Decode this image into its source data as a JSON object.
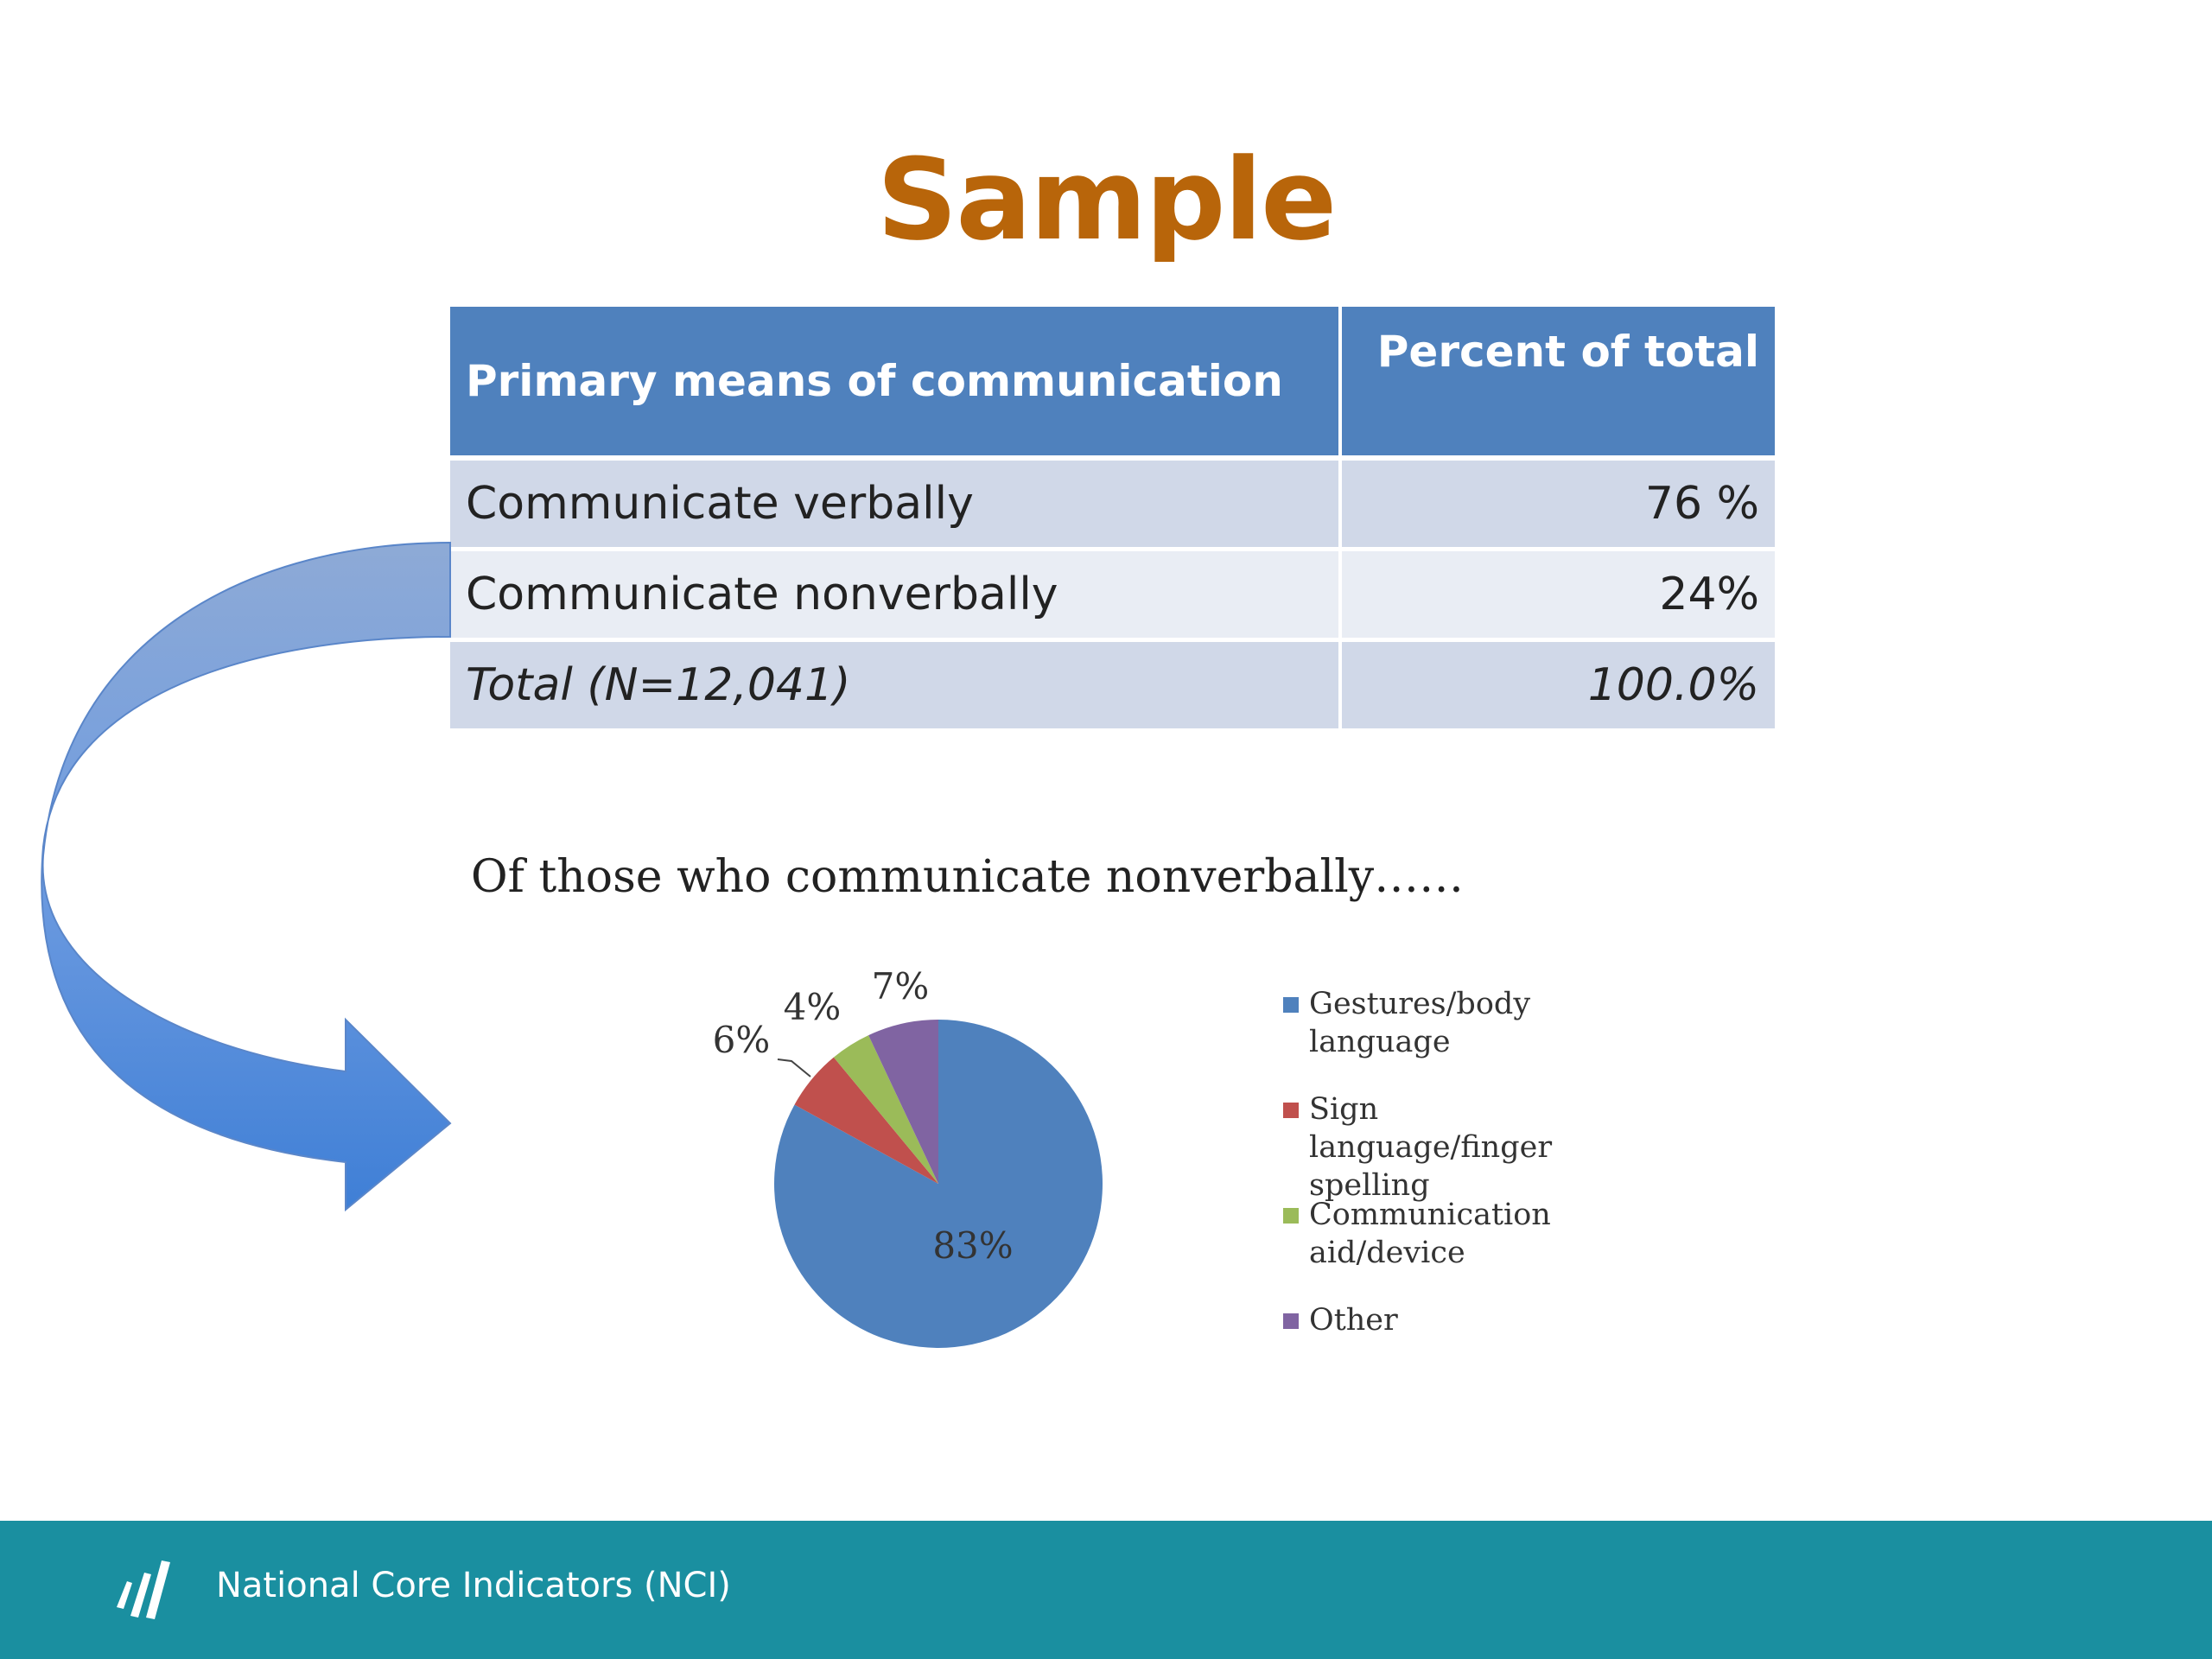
{
  "slide": {
    "title": "Sample",
    "title_color": "#b8650a",
    "footer_text": "National Core Indicators (NCI)",
    "footer_color": "#1a8fa0"
  },
  "table": {
    "headers": [
      "Primary means of communication",
      "Percent of total"
    ],
    "rows": [
      [
        "Communicate verbally",
        "76 %"
      ],
      [
        "Communicate nonverbally",
        "24%"
      ],
      [
        "Total (N=12,041)",
        "100.0%"
      ]
    ]
  },
  "chart_data": {
    "type": "pie",
    "title": "Of those who communicate nonverbally……",
    "categories": [
      "Gestures/body language",
      "Sign language/finger spelling",
      "Communication aid/device",
      "Other"
    ],
    "values": [
      83,
      6,
      4,
      7
    ],
    "labels": [
      "83%",
      "6%",
      "4%",
      "7%"
    ],
    "colors": [
      "#4f81bd",
      "#c0504d",
      "#9bbb59",
      "#8064a2"
    ],
    "legend": "right"
  }
}
